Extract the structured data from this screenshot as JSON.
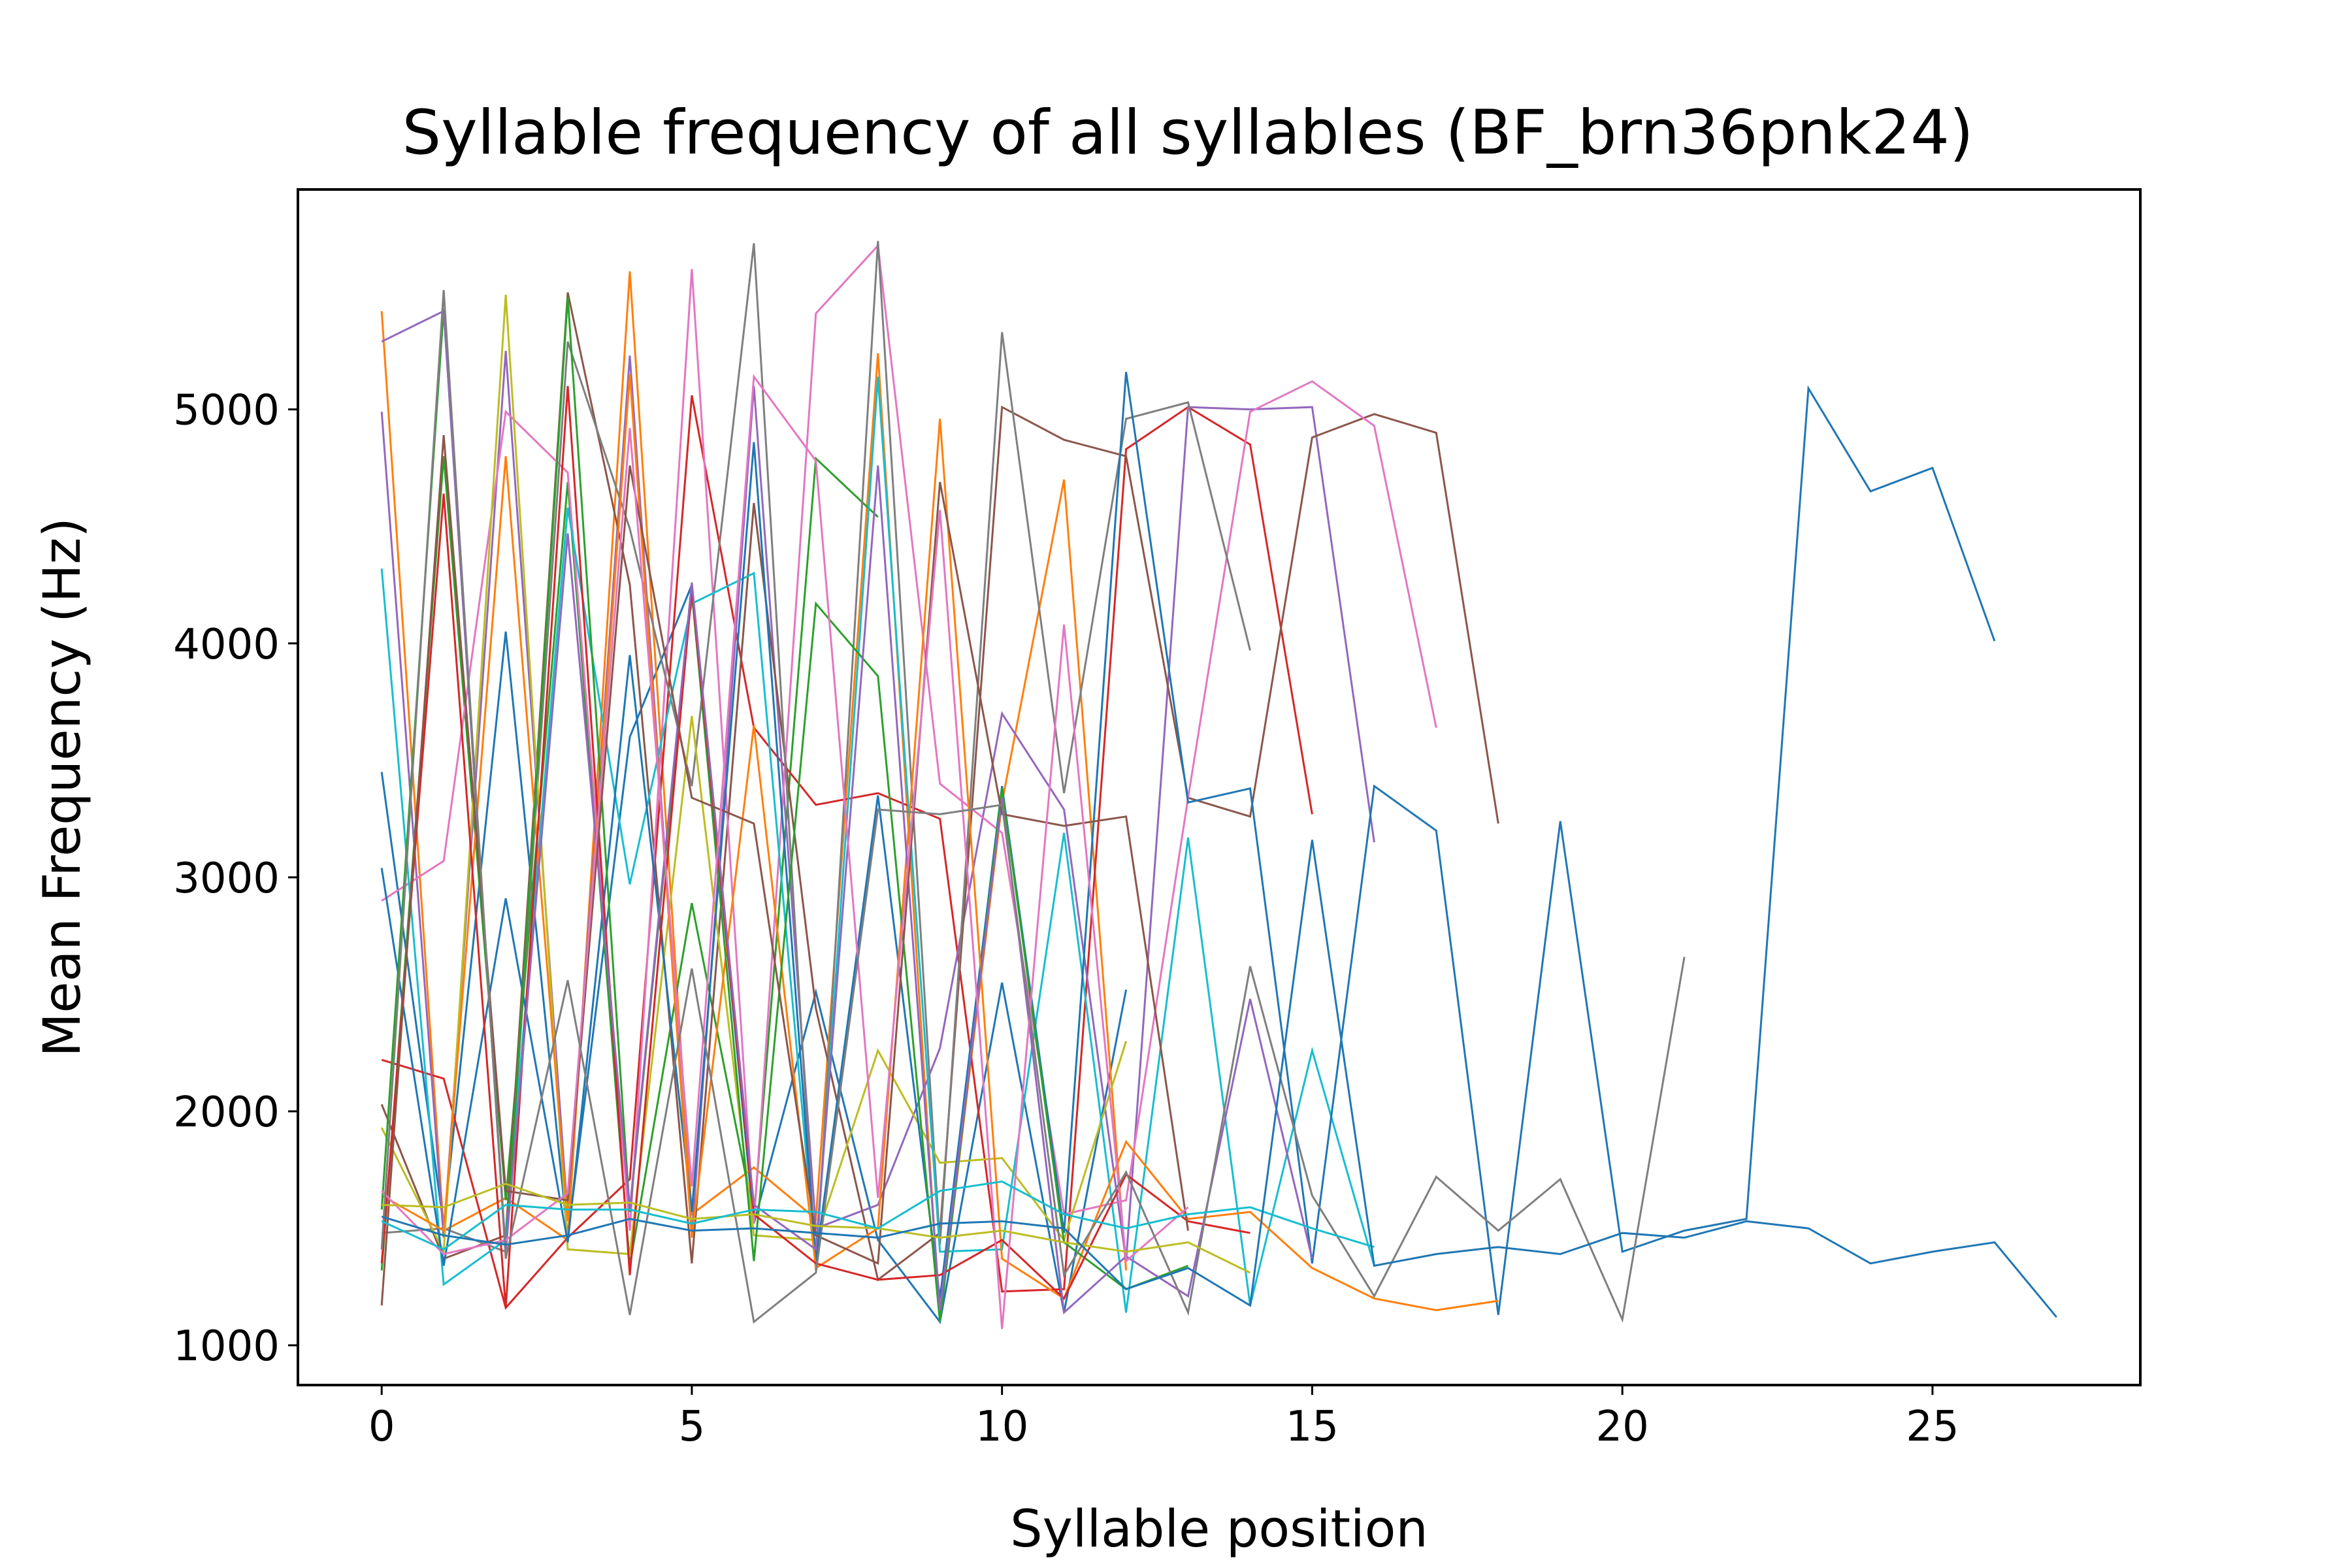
{
  "chart_data": {
    "type": "line",
    "title": "Syllable frequency of all syllables (BF_brn36pnk24)",
    "xlabel": "Syllable position",
    "ylabel": "Mean Frequency (Hz)",
    "xlim": [
      -1.35,
      28.35
    ],
    "ylim": [
      830,
      5940
    ],
    "xticks": [
      0,
      5,
      10,
      15,
      20,
      25
    ],
    "yticks": [
      1000,
      2000,
      3000,
      4000,
      5000
    ],
    "grid": false,
    "legend": "none",
    "palette": [
      "#1f77b4",
      "#ff7f0e",
      "#2ca02c",
      "#d62728",
      "#9467bd",
      "#8c564b",
      "#e377c2",
      "#7f7f7f",
      "#bcbd22",
      "#17becf"
    ],
    "series": [
      {
        "values": [
          3450,
          1510,
          4050,
          1460,
          3600,
          4250,
          1520,
          2510,
          1450,
          1100,
          2550,
          1140,
          2520
        ]
      },
      {
        "values": [
          5420,
          1490,
          1630,
          1450,
          5590,
          1560,
          1760,
          1540,
          5240,
          1110,
          3320,
          4700,
          1320
        ]
      },
      {
        "values": [
          1320,
          4800,
          1620,
          4690,
          1340,
          2890,
          1550,
          4790,
          4540
        ]
      },
      {
        "values": [
          2220,
          2140,
          1160,
          1460,
          1710,
          5060,
          3640,
          3310,
          3360,
          3250,
          1230,
          1240,
          4830,
          5010,
          4850,
          3270
        ]
      },
      {
        "values": [
          4990,
          1460,
          5250,
          1550,
          5230,
          1470,
          5100,
          1500,
          1600,
          2270,
          3700,
          3290,
          1360,
          5010,
          5000,
          5010,
          3150
        ]
      },
      {
        "values": [
          2030,
          1370,
          1470,
          5500,
          4250,
          1350,
          4600,
          2440,
          1280,
          1480,
          5010,
          4870,
          4800,
          3340,
          3260,
          4880,
          4980,
          4900,
          3230
        ]
      },
      {
        "values": [
          2900,
          3070,
          4990,
          4730,
          1490,
          5600,
          1520,
          5410,
          5700,
          3400,
          3190,
          1560,
          1620,
          3340,
          4990,
          5120,
          4930,
          3640
        ]
      },
      {
        "values": [
          1480,
          1500,
          1400,
          5290,
          4490,
          3390,
          5710,
          1320,
          5720,
          1430,
          5330,
          3360,
          4960,
          5030,
          3970
        ]
      },
      {
        "values": [
          1930,
          1400,
          5490,
          1410,
          1390,
          3690,
          1470,
          1450,
          2260,
          1780,
          1800,
          1450,
          2300
        ]
      },
      {
        "values": [
          4320,
          1260,
          1450,
          4580,
          2970,
          4170,
          4300,
          1360,
          5140,
          1400,
          1410,
          3190,
          1140,
          3170,
          1170,
          2260,
          1340
        ]
      },
      {
        "values": [
          3040,
          1340,
          2910,
          1440,
          3950,
          1570,
          4860,
          1360,
          3350,
          1200,
          3390,
          1480,
          5160,
          3320,
          3380,
          1350,
          3390,
          3200,
          1130,
          3240,
          1400,
          1490,
          1540,
          5090,
          4650,
          4750,
          4010
        ]
      },
      {
        "values": [
          1640,
          1490,
          4800,
          1530,
          5150,
          1460,
          3650,
          1330,
          1500,
          4960,
          1370,
          1200,
          1870,
          1540,
          1570,
          1330,
          1200,
          1150,
          1190
        ]
      },
      {
        "values": [
          1580,
          5430,
          1390,
          5480,
          1570,
          4220,
          1360,
          4170,
          3860,
          1100,
          3380,
          1440,
          1240,
          1340
        ]
      },
      {
        "values": [
          1350,
          4640,
          1160,
          5100,
          1300,
          4230,
          1560,
          1350,
          1280,
          1300,
          1450,
          1200,
          1730,
          1530,
          1480
        ]
      },
      {
        "values": [
          5290,
          5420,
          1400,
          4470,
          1580,
          4260,
          1600,
          1410,
          4760,
          1150,
          3340,
          1140,
          1380,
          1210,
          2480,
          1370
        ]
      },
      {
        "values": [
          1170,
          4890,
          1660,
          1620,
          4760,
          3340,
          3230,
          1470,
          1350,
          4690,
          3270,
          3220,
          3260,
          1490
        ]
      },
      {
        "values": [
          1660,
          1390,
          1450,
          1650,
          4920,
          1680,
          5140,
          4780,
          1630,
          4570,
          1070,
          4080,
          1360,
          1590
        ]
      },
      {
        "values": [
          1410,
          5510,
          1370,
          2560,
          1130,
          2610,
          1100,
          1310,
          3290,
          3270,
          3310,
          1300,
          1740,
          1140,
          2620,
          1640,
          1210,
          1720,
          1490,
          1710,
          1110,
          2660
        ]
      },
      {
        "values": [
          1600,
          1590,
          1690,
          1600,
          1610,
          1540,
          1560,
          1510,
          1500,
          1460,
          1490,
          1440,
          1400,
          1440,
          1310
        ]
      },
      {
        "values": [
          1530,
          1410,
          1600,
          1580,
          1580,
          1520,
          1580,
          1570,
          1500,
          1660,
          1700,
          1560,
          1500,
          1560,
          1590,
          1500,
          1420
        ]
      },
      {
        "values": [
          1550,
          1470,
          1430,
          1470,
          1540,
          1490,
          1500,
          1480,
          1460,
          1520,
          1530,
          1500,
          1240,
          1330,
          1170,
          3160,
          1340,
          1390,
          1420,
          1390,
          1480,
          1460,
          1530,
          1500,
          1350,
          1400,
          1440,
          1120
        ]
      }
    ]
  }
}
